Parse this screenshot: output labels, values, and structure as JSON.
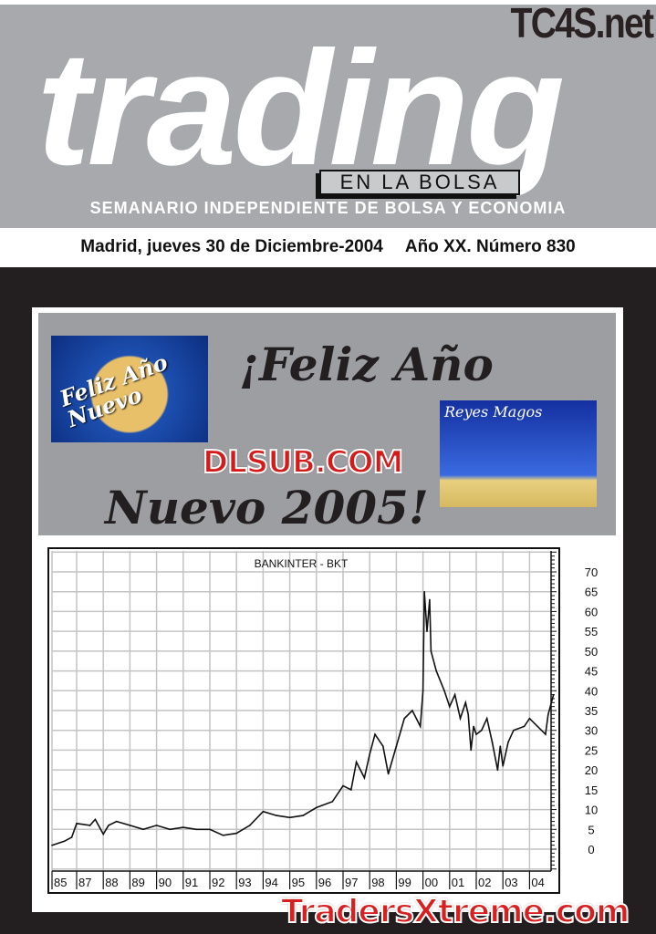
{
  "masthead": {
    "watermark": "TC4S.net",
    "logo": "trading",
    "tagline_box": "EN LA BOLSA",
    "subtitle": "SEMANARIO INDEPENDIENTE DE BOLSA Y ECONOMIA",
    "dateline": "Madrid, jueves 30 de Diciembre-2004",
    "issue": "Año XX. Número 830"
  },
  "greeting": {
    "line1": "¡Feliz Año",
    "line2": "Nuevo 2005!",
    "image1_text": "Feliz Año Nuevo",
    "image2_text": "Reyes Magos",
    "watermark": "DLSUB.COM"
  },
  "footer_watermark": "TradersXtreme.com",
  "colors": {
    "masthead_bg": "#a7a9ac",
    "page_bg": "#231f20",
    "greeting_bg": "#9d9ea1",
    "watermark_red": "#d51a1a"
  },
  "chart_data": {
    "type": "line",
    "title": "BANKINTER - BKT",
    "xlabel": "",
    "ylabel": "",
    "x_tick_labels": [
      "85",
      "87",
      "88",
      "89",
      "90",
      "91",
      "92",
      "93",
      "94",
      "95",
      "96",
      "97",
      "98",
      "99",
      "00",
      "01",
      "02",
      "03",
      "04"
    ],
    "y_tick_labels": [
      "70",
      "65",
      "60",
      "55",
      "50",
      "45",
      "40",
      "35",
      "30",
      "25",
      "20",
      "15",
      "10",
      "5",
      "0"
    ],
    "ylim": [
      0,
      70
    ],
    "grid": true,
    "y_axis_side": "right",
    "series": [
      {
        "x": [
          1985.0,
          1986.0,
          1986.6,
          1987.0,
          1987.5,
          1987.7,
          1988.0,
          1988.2,
          1988.5,
          1989.0,
          1989.5,
          1990.0,
          1990.5,
          1991.0,
          1991.5,
          1992.0,
          1992.5,
          1993.0,
          1993.5,
          1994.0,
          1994.5,
          1995.0,
          1995.5,
          1996.0,
          1996.6,
          1997.0,
          1997.3,
          1997.5,
          1997.8,
          1998.0,
          1998.2,
          1998.5,
          1998.7,
          1999.0,
          1999.3,
          1999.6,
          1999.9,
          2000.0,
          2000.05,
          2000.15,
          2000.25,
          2000.3,
          2000.5,
          2000.8,
          2001.0,
          2001.2,
          2001.4,
          2001.6,
          2001.7,
          2001.8,
          2001.9,
          2002.0,
          2002.2,
          2002.4,
          2002.6,
          2002.8,
          2002.9,
          2003.0,
          2003.2,
          2003.4,
          2003.8,
          2004.0,
          2004.3,
          2004.6,
          2004.7,
          2004.9
        ],
        "y": [
          1,
          2,
          3,
          6.5,
          6,
          7.5,
          3.8,
          6,
          7,
          6,
          5,
          6,
          5,
          5.5,
          5,
          5,
          3.5,
          4,
          6,
          9.5,
          8.5,
          8,
          8.5,
          10.5,
          12,
          16,
          15,
          22,
          18,
          24,
          29,
          26,
          19,
          26,
          33,
          35,
          31,
          40,
          65,
          55,
          63,
          50,
          45,
          40,
          36,
          39,
          33,
          37,
          34,
          25,
          31,
          29,
          30,
          33,
          27,
          20,
          26,
          21,
          27,
          30,
          31,
          33,
          31,
          29,
          34,
          39
        ]
      }
    ]
  }
}
